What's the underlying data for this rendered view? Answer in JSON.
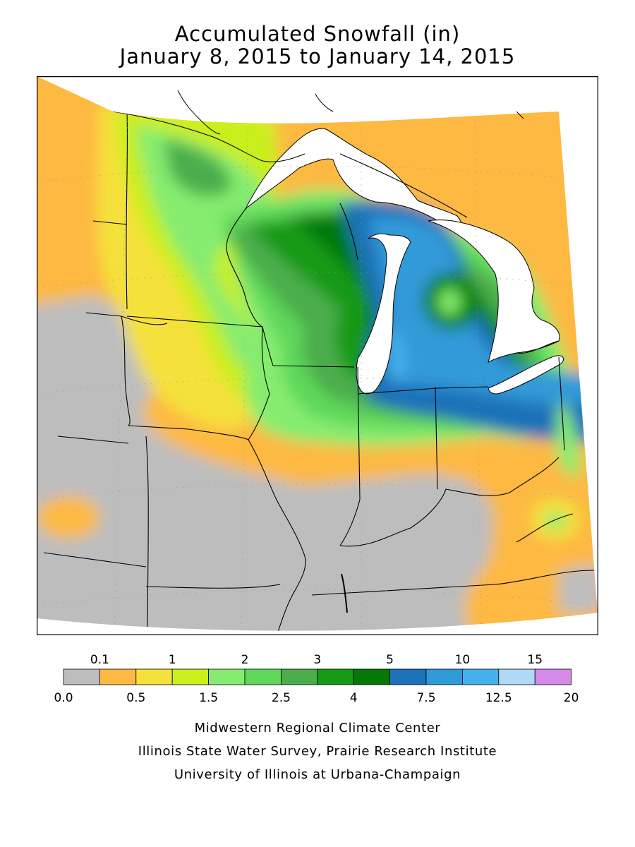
{
  "title": {
    "line1": "Accumulated Snowfall (in)",
    "line2": "January 8, 2015 to January 14, 2015"
  },
  "legend": {
    "top_labels": [
      "0.1",
      "1",
      "2",
      "3",
      "5",
      "10",
      "15"
    ],
    "bottom_labels": [
      "0.0",
      "0.5",
      "1.5",
      "2.5",
      "4",
      "7.5",
      "12.5",
      "20"
    ],
    "bins": [
      {
        "lo": 0.0,
        "hi": 0.1,
        "color": "#bdbdbd"
      },
      {
        "lo": 0.1,
        "hi": 0.5,
        "color": "#fdb943"
      },
      {
        "lo": 0.5,
        "hi": 1,
        "color": "#f5e13a"
      },
      {
        "lo": 1,
        "hi": 1.5,
        "color": "#c9ef1c"
      },
      {
        "lo": 1.5,
        "hi": 2,
        "color": "#86ec70"
      },
      {
        "lo": 2,
        "hi": 2.5,
        "color": "#5fd75a"
      },
      {
        "lo": 2.5,
        "hi": 3,
        "color": "#4cad4c"
      },
      {
        "lo": 3,
        "hi": 4,
        "color": "#169a18"
      },
      {
        "lo": 4,
        "hi": 5,
        "color": "#057807"
      },
      {
        "lo": 5,
        "hi": 7.5,
        "color": "#1d72b8"
      },
      {
        "lo": 7.5,
        "hi": 10,
        "color": "#309ad8"
      },
      {
        "lo": 10,
        "hi": 12.5,
        "color": "#45b1ec"
      },
      {
        "lo": 12.5,
        "hi": 15,
        "color": "#b1d8f5"
      },
      {
        "lo": 15,
        "hi": 20,
        "color": "#d58ae9"
      }
    ]
  },
  "credits": [
    "Midwestern Regional Climate Center",
    "Illinois State Water Survey, Prairie Research Institute",
    "University of Illinois at Urbana-Champaign"
  ]
}
